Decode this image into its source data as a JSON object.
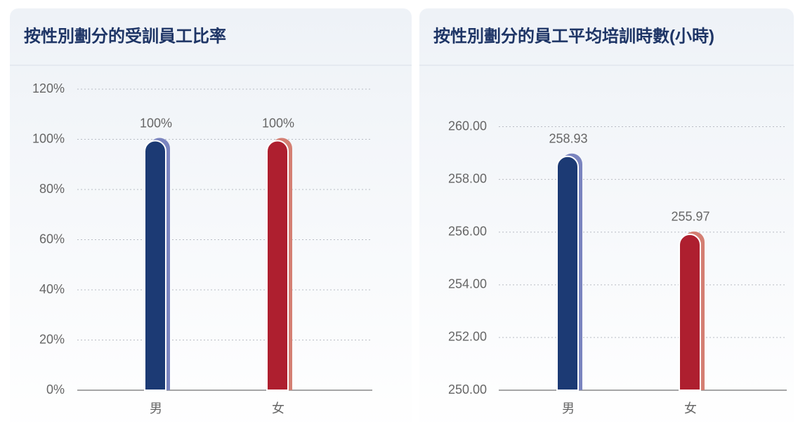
{
  "chart_data": [
    {
      "type": "bar",
      "title": "按性別劃分的受訓員工比率",
      "categories": [
        "男",
        "女"
      ],
      "values": [
        100,
        100
      ],
      "value_labels": [
        "100%",
        "100%"
      ],
      "colors": [
        "#1c3a74",
        "#ae1f2f"
      ],
      "shade_colors": [
        "#7a84bf",
        "#d47f73"
      ],
      "ylim": [
        0,
        120
      ],
      "yticks": [
        {
          "value": 0,
          "label": "0%"
        },
        {
          "value": 20,
          "label": "20%"
        },
        {
          "value": 40,
          "label": "40%"
        },
        {
          "value": 60,
          "label": "60%"
        },
        {
          "value": 80,
          "label": "80%"
        },
        {
          "value": 100,
          "label": "100%"
        },
        {
          "value": 120,
          "label": "120%"
        }
      ],
      "grid": true
    },
    {
      "type": "bar",
      "title": "按性別劃分的員工平均培訓時數(小時)",
      "categories": [
        "男",
        "女"
      ],
      "values": [
        258.93,
        255.97
      ],
      "colors": [
        "#1c3a74",
        "#ae1f2f"
      ],
      "shade_colors": [
        "#7a84bf",
        "#d47f73"
      ],
      "ylim": [
        250,
        261
      ],
      "yticks": [
        {
          "value": 250,
          "label": "250.00"
        },
        {
          "value": 252,
          "label": "252.00"
        },
        {
          "value": 254,
          "label": "254.00"
        },
        {
          "value": 256,
          "label": "256.00"
        },
        {
          "value": 258,
          "label": "258.00"
        },
        {
          "value": 260,
          "label": "260.00"
        }
      ],
      "grid": true
    }
  ]
}
